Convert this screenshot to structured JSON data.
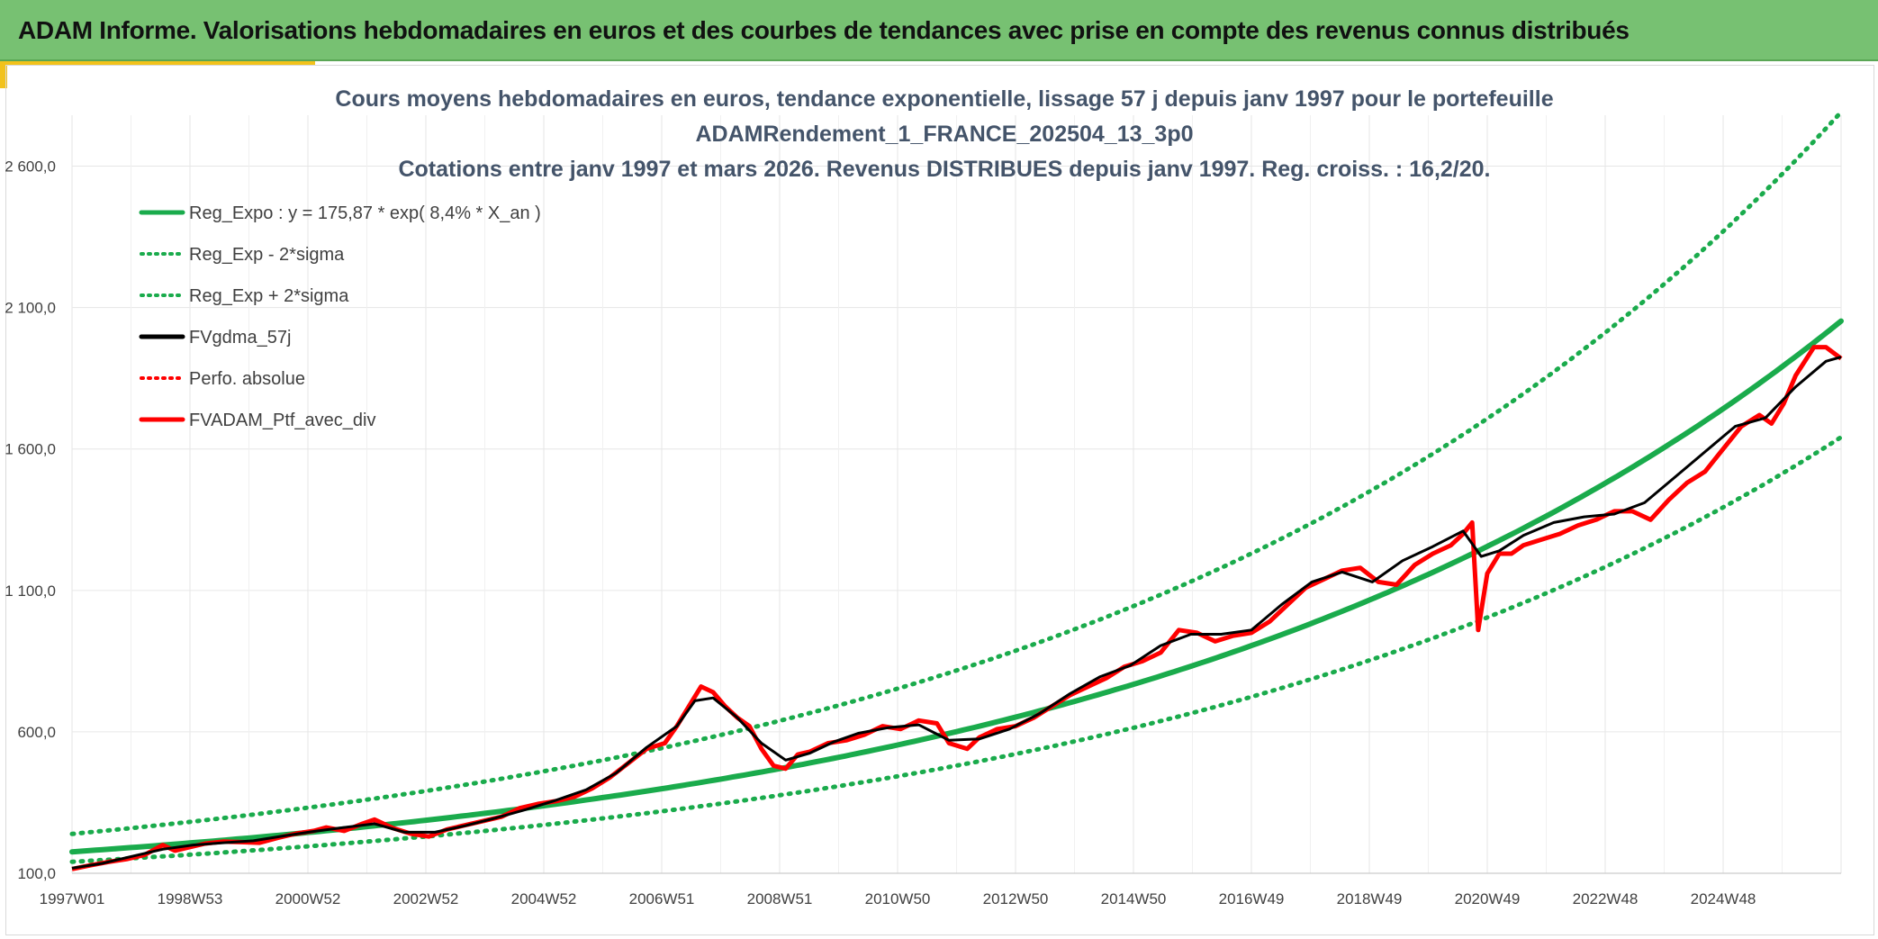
{
  "banner": {
    "title": "ADAM Informe. Valorisations hebdomadaires en euros et des courbes de tendances avec prise en compte des revenus connus distribués"
  },
  "colors": {
    "banner_bg": "#77c172",
    "accent": "#f2c21b",
    "reg_green": "#1aab4c",
    "black": "#000000",
    "red": "#ff0000",
    "grid": "#e6e6e6"
  },
  "chart_data": {
    "type": "line",
    "title_lines": [
      "Cours moyens hebdomadaires en euros, tendance exponentielle, lissage 57 j depuis janv 1997 pour le portefeuille",
      "ADAMRendement_1_FRANCE_202504_13_3p0",
      "Cotations entre janv 1997 et mars 2026. Revenus DISTRIBUES depuis janv 1997. Reg. croiss. : 16,2/20."
    ],
    "x_tick_labels": [
      "1997W01",
      "1998W53",
      "2000W52",
      "2002W52",
      "2004W52",
      "2006W51",
      "2008W51",
      "2010W50",
      "2012W50",
      "2014W50",
      "2016W49",
      "2018W49",
      "2020W49",
      "2022W48",
      "2024W48"
    ],
    "x_range_years": [
      1997.0,
      2026.25
    ],
    "y_ticks": [
      100,
      600,
      1100,
      1600,
      2100,
      2600
    ],
    "y_tick_labels": [
      "100,0",
      "600,0",
      "1 100,0",
      "1 600,0",
      "2 100,0",
      "2 600,0"
    ],
    "ylim": [
      100,
      2780
    ],
    "grid": true,
    "legend_position": "top-left",
    "legend": [
      {
        "label": "Reg_Expo : y = 175,87 * exp( 8,4% *  X_an )",
        "color": "#1aab4c",
        "style": "solid"
      },
      {
        "label": "Reg_Exp - 2*sigma",
        "color": "#1aab4c",
        "style": "dotted"
      },
      {
        "label": "Reg_Exp + 2*sigma",
        "color": "#1aab4c",
        "style": "dotted"
      },
      {
        "label": "FVgdma_57j",
        "color": "#000000",
        "style": "solid"
      },
      {
        "label": "Perfo. absolue",
        "color": "#ff0000",
        "style": "dotted"
      },
      {
        "label": "FVADAM_Ptf_avec_div",
        "color": "#ff0000",
        "style": "solid"
      }
    ],
    "regression": {
      "a": 175.87,
      "rate": 0.084,
      "start_year": 1997.0,
      "end_year": 2026.25
    },
    "series": [
      {
        "name": "Reg_Expo : y = 175,87 * exp( 8,4% *  X_an )",
        "kind": "regression",
        "factor": 1.0
      },
      {
        "name": "Reg_Exp - 2*sigma",
        "kind": "regression",
        "factor": 0.8
      },
      {
        "name": "Reg_Exp + 2*sigma",
        "kind": "regression",
        "factor": 1.36
      },
      {
        "name": "FVADAM_Ptf_avec_div",
        "x": [
          1997.0,
          1997.3,
          1997.6,
          1997.9,
          1998.2,
          1998.5,
          1998.7,
          1998.9,
          1999.2,
          1999.5,
          1999.8,
          2000.1,
          2000.4,
          2000.7,
          2001.0,
          2001.2,
          2001.5,
          2001.8,
          2002.0,
          2002.3,
          2002.6,
          2002.9,
          2003.2,
          2003.5,
          2003.8,
          2004.1,
          2004.4,
          2004.7,
          2005.0,
          2005.3,
          2005.6,
          2005.9,
          2006.2,
          2006.5,
          2006.8,
          2007.0,
          2007.2,
          2007.4,
          2007.6,
          2007.8,
          2008.0,
          2008.2,
          2008.4,
          2008.6,
          2008.8,
          2009.0,
          2009.2,
          2009.5,
          2009.8,
          2010.1,
          2010.4,
          2010.7,
          2011.0,
          2011.3,
          2011.5,
          2011.8,
          2012.0,
          2012.3,
          2012.6,
          2012.9,
          2013.2,
          2013.5,
          2013.8,
          2014.1,
          2014.4,
          2014.7,
          2015.0,
          2015.3,
          2015.6,
          2015.9,
          2016.2,
          2016.5,
          2016.8,
          2017.1,
          2017.4,
          2017.7,
          2018.0,
          2018.3,
          2018.6,
          2018.9,
          2019.2,
          2019.5,
          2019.8,
          2020.0,
          2020.15,
          2020.25,
          2020.4,
          2020.6,
          2020.8,
          2021.0,
          2021.3,
          2021.6,
          2021.9,
          2022.2,
          2022.5,
          2022.8,
          2023.1,
          2023.4,
          2023.7,
          2024.0,
          2024.3,
          2024.6,
          2024.9,
          2025.1,
          2025.3,
          2025.5,
          2025.8,
          2026.0,
          2026.25
        ],
        "y": [
          115,
          128,
          140,
          150,
          165,
          200,
          180,
          190,
          205,
          212,
          210,
          208,
          225,
          240,
          250,
          262,
          250,
          275,
          290,
          260,
          240,
          230,
          255,
          270,
          285,
          300,
          330,
          345,
          355,
          370,
          400,
          440,
          490,
          540,
          560,
          620,
          690,
          760,
          740,
          690,
          650,
          620,
          540,
          480,
          470,
          520,
          530,
          560,
          570,
          590,
          620,
          610,
          640,
          630,
          560,
          540,
          580,
          610,
          620,
          650,
          690,
          730,
          760,
          790,
          830,
          850,
          880,
          960,
          950,
          920,
          940,
          950,
          990,
          1050,
          1110,
          1140,
          1170,
          1180,
          1130,
          1120,
          1190,
          1230,
          1260,
          1300,
          1340,
          960,
          1160,
          1230,
          1230,
          1260,
          1280,
          1300,
          1330,
          1350,
          1380,
          1380,
          1350,
          1420,
          1480,
          1520,
          1600,
          1680,
          1720,
          1690,
          1760,
          1860,
          1960,
          1960,
          1920
        ]
      },
      {
        "name": "FVgdma_57j",
        "x": [
          1997.0,
          1997.5,
          1998.0,
          1998.5,
          1999.0,
          1999.5,
          2000.0,
          2000.5,
          2001.0,
          2001.5,
          2002.0,
          2002.5,
          2003.0,
          2003.5,
          2004.0,
          2004.5,
          2005.0,
          2005.5,
          2006.0,
          2006.5,
          2007.0,
          2007.3,
          2007.6,
          2008.0,
          2008.4,
          2008.8,
          2009.2,
          2009.6,
          2010.0,
          2010.5,
          2011.0,
          2011.5,
          2012.0,
          2012.5,
          2013.0,
          2013.5,
          2014.0,
          2014.5,
          2015.0,
          2015.5,
          2016.0,
          2016.5,
          2017.0,
          2017.5,
          2018.0,
          2018.5,
          2019.0,
          2019.5,
          2020.0,
          2020.3,
          2020.6,
          2021.0,
          2021.5,
          2022.0,
          2022.5,
          2023.0,
          2023.5,
          2024.0,
          2024.5,
          2025.0,
          2025.5,
          2026.0,
          2026.25
        ],
        "y": [
          118,
          135,
          160,
          185,
          200,
          208,
          215,
          232,
          248,
          262,
          275,
          245,
          245,
          268,
          295,
          325,
          358,
          395,
          455,
          545,
          620,
          710,
          720,
          650,
          560,
          500,
          525,
          565,
          595,
          615,
          625,
          570,
          575,
          610,
          665,
          735,
          795,
          835,
          905,
          945,
          945,
          960,
          1050,
          1130,
          1165,
          1130,
          1205,
          1255,
          1310,
          1220,
          1240,
          1295,
          1340,
          1360,
          1370,
          1410,
          1500,
          1590,
          1680,
          1710,
          1820,
          1910,
          1925
        ]
      }
    ]
  }
}
